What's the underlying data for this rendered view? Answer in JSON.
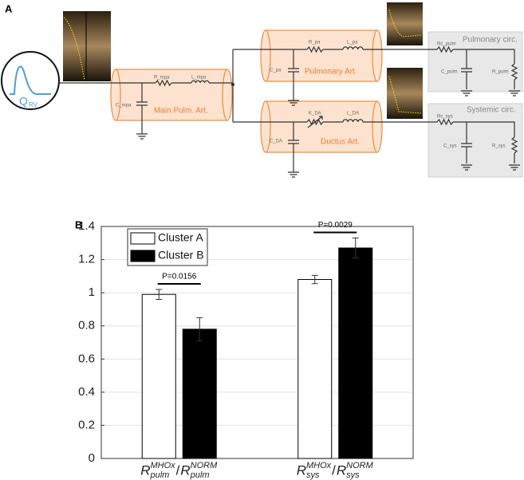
{
  "panel_a": {
    "label": "A",
    "source": {
      "symbol": "Q",
      "subscript": "RV"
    },
    "main": {
      "R": "R_mpa",
      "L": "L_mpa",
      "C": "C_mpa",
      "name": "Main Pulm. Art."
    },
    "pulmonary": {
      "R": "R_pa",
      "L": "L_pa",
      "C": "C_pa",
      "name": "Pulmonary Art."
    },
    "ductus": {
      "R": "K_DA",
      "L": "L_DA",
      "C": "C_DA",
      "name": "Ductus Art."
    },
    "pulm_circ": {
      "Rc": "Rc_pulm",
      "C": "C_pulm",
      "R": "R_pulm",
      "name": "Pulmonary circ."
    },
    "sys_circ": {
      "Rc": "Rc_sys",
      "C": "C_sys",
      "R": "R_sys",
      "name": "Systemic circ."
    }
  },
  "chart_data": {
    "type": "bar",
    "panel_label": "B",
    "categories": [
      [
        "R",
        "pulm",
        "MHOx",
        "/",
        "R",
        "pulm",
        "NORM"
      ],
      [
        "R",
        "sys",
        "MHOx",
        "/",
        "R",
        "sys",
        "NORM"
      ]
    ],
    "series": [
      {
        "name": "Cluster A",
        "color": "#ffffff",
        "values": [
          0.99,
          1.08
        ],
        "errors": [
          0.03,
          0.025
        ]
      },
      {
        "name": "Cluster B",
        "color": "#000000",
        "values": [
          0.78,
          1.27
        ],
        "errors": [
          0.07,
          0.06
        ]
      }
    ],
    "annotations": [
      "P=0.0156",
      "P=0.0029"
    ],
    "ylim": [
      0,
      1.4
    ],
    "yticks": [
      0,
      0.2,
      0.4,
      0.6,
      0.8,
      1,
      1.2,
      1.4
    ],
    "grid": true,
    "legend": "upper left"
  }
}
